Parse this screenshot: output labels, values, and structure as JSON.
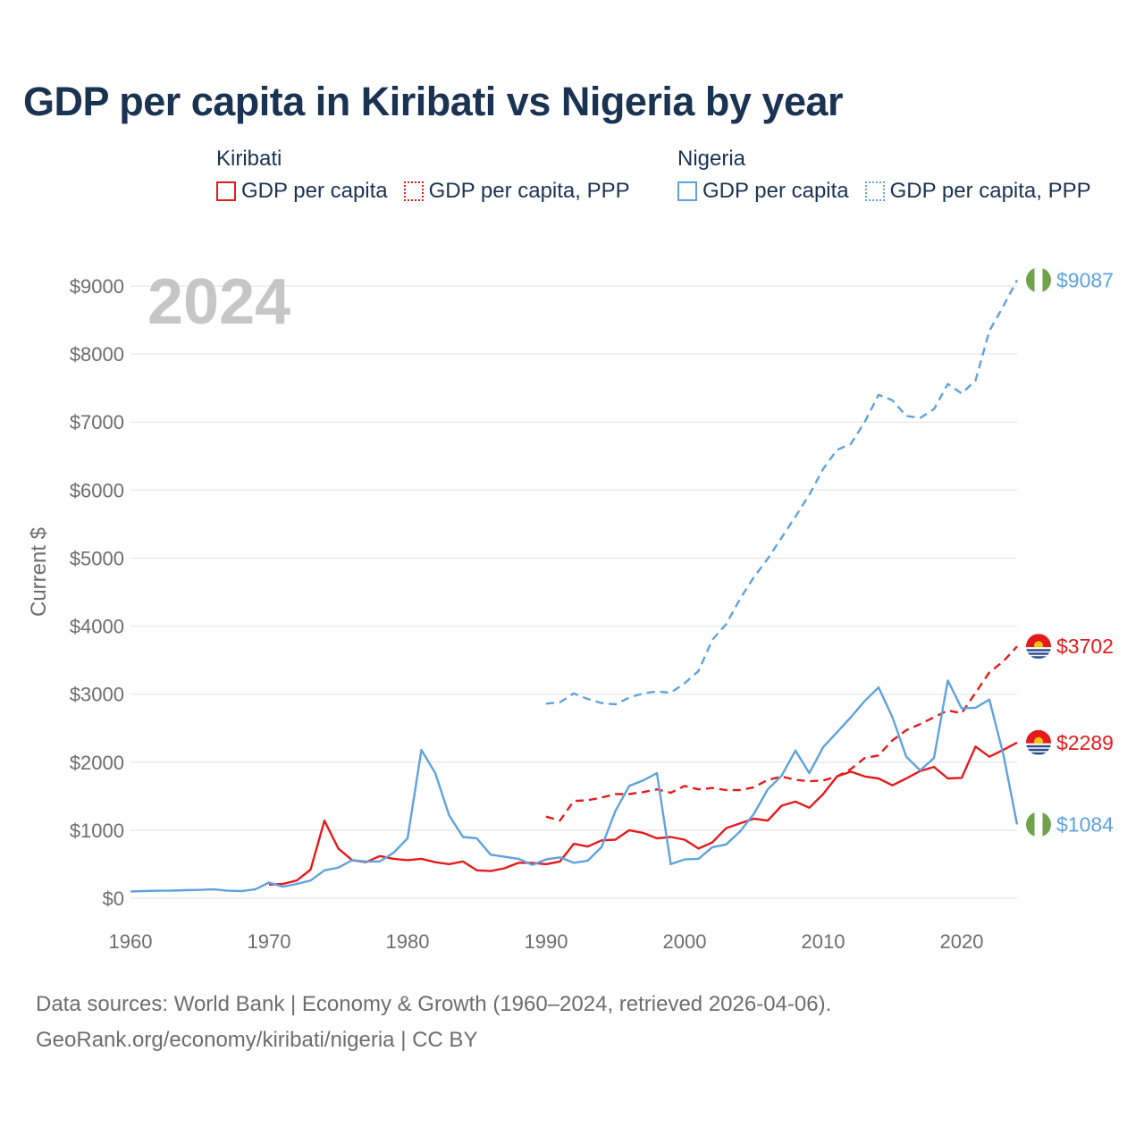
{
  "title": "GDP per capita in Kiribati vs Nigeria by year",
  "legend": {
    "groups": [
      {
        "name": "Kiribati",
        "items": [
          {
            "label": "GDP per capita",
            "color": "#e41a1c",
            "style": "solid"
          },
          {
            "label": "GDP per capita, PPP",
            "color": "#e41a1c",
            "style": "dotted"
          }
        ]
      },
      {
        "name": "Nigeria",
        "items": [
          {
            "label": "GDP per capita",
            "color": "#5fa2dd",
            "style": "solid"
          },
          {
            "label": "GDP per capita, PPP",
            "color": "#5fa2dd",
            "style": "dotted"
          }
        ]
      }
    ]
  },
  "year_watermark": "2024",
  "footer": {
    "line1": "Data sources: World Bank | Economy & Growth (1960–2024, retrieved 2026-04-06).",
    "line2": "GeoRank.org/economy/kiribati/nigeria | CC BY"
  },
  "chart_data": {
    "type": "line",
    "title": "GDP per capita in Kiribati vs Nigeria by year",
    "xlabel": "",
    "ylabel": "Current $",
    "xlim": [
      1960,
      2024
    ],
    "ylim": [
      0,
      9000
    ],
    "xticks": [
      1960,
      1970,
      1980,
      1990,
      2000,
      2010,
      2020
    ],
    "yticks": [
      0,
      1000,
      2000,
      3000,
      4000,
      5000,
      6000,
      7000,
      8000,
      9000
    ],
    "ytick_labels": [
      "$0",
      "$1000",
      "$2000",
      "$3000",
      "$4000",
      "$5000",
      "$6000",
      "$7000",
      "$8000",
      "$9000"
    ],
    "grid": true,
    "series": [
      {
        "name": "Kiribati GDP per capita",
        "color": "#e41a1c",
        "dash": "solid",
        "end_label": "$2289",
        "points": [
          [
            1970,
            200
          ],
          [
            1971,
            210
          ],
          [
            1972,
            260
          ],
          [
            1973,
            420
          ],
          [
            1974,
            1140
          ],
          [
            1975,
            730
          ],
          [
            1976,
            560
          ],
          [
            1977,
            530
          ],
          [
            1978,
            620
          ],
          [
            1979,
            580
          ],
          [
            1980,
            560
          ],
          [
            1981,
            580
          ],
          [
            1982,
            530
          ],
          [
            1983,
            500
          ],
          [
            1984,
            540
          ],
          [
            1985,
            410
          ],
          [
            1986,
            400
          ],
          [
            1987,
            440
          ],
          [
            1988,
            520
          ],
          [
            1989,
            520
          ],
          [
            1990,
            500
          ],
          [
            1991,
            540
          ],
          [
            1992,
            800
          ],
          [
            1993,
            760
          ],
          [
            1994,
            850
          ],
          [
            1995,
            860
          ],
          [
            1996,
            1000
          ],
          [
            1997,
            960
          ],
          [
            1998,
            880
          ],
          [
            1999,
            900
          ],
          [
            2000,
            860
          ],
          [
            2001,
            730
          ],
          [
            2002,
            820
          ],
          [
            2003,
            1030
          ],
          [
            2004,
            1100
          ],
          [
            2005,
            1170
          ],
          [
            2006,
            1140
          ],
          [
            2007,
            1360
          ],
          [
            2008,
            1420
          ],
          [
            2009,
            1330
          ],
          [
            2010,
            1530
          ],
          [
            2011,
            1790
          ],
          [
            2012,
            1860
          ],
          [
            2013,
            1790
          ],
          [
            2014,
            1760
          ],
          [
            2015,
            1660
          ],
          [
            2016,
            1760
          ],
          [
            2017,
            1870
          ],
          [
            2018,
            1930
          ],
          [
            2019,
            1760
          ],
          [
            2020,
            1770
          ],
          [
            2021,
            2230
          ],
          [
            2022,
            2080
          ],
          [
            2023,
            2180
          ],
          [
            2024,
            2289
          ]
        ]
      },
      {
        "name": "Kiribati GDP per capita, PPP",
        "color": "#e41a1c",
        "dash": "dashed",
        "end_label": "$3702",
        "points": [
          [
            1990,
            1200
          ],
          [
            1991,
            1140
          ],
          [
            1992,
            1430
          ],
          [
            1993,
            1440
          ],
          [
            1994,
            1480
          ],
          [
            1995,
            1530
          ],
          [
            1996,
            1530
          ],
          [
            1997,
            1560
          ],
          [
            1998,
            1600
          ],
          [
            1999,
            1550
          ],
          [
            2000,
            1650
          ],
          [
            2001,
            1600
          ],
          [
            2002,
            1620
          ],
          [
            2003,
            1590
          ],
          [
            2004,
            1590
          ],
          [
            2005,
            1630
          ],
          [
            2006,
            1740
          ],
          [
            2007,
            1790
          ],
          [
            2008,
            1740
          ],
          [
            2009,
            1720
          ],
          [
            2010,
            1730
          ],
          [
            2011,
            1790
          ],
          [
            2012,
            1900
          ],
          [
            2013,
            2060
          ],
          [
            2014,
            2100
          ],
          [
            2015,
            2320
          ],
          [
            2016,
            2470
          ],
          [
            2017,
            2560
          ],
          [
            2018,
            2660
          ],
          [
            2019,
            2760
          ],
          [
            2020,
            2720
          ],
          [
            2021,
            3020
          ],
          [
            2022,
            3320
          ],
          [
            2023,
            3480
          ],
          [
            2024,
            3702
          ]
        ]
      },
      {
        "name": "Nigeria GDP per capita",
        "color": "#5fa2dd",
        "dash": "solid",
        "end_label": "$1084",
        "points": [
          [
            1960,
            100
          ],
          [
            1961,
            105
          ],
          [
            1962,
            110
          ],
          [
            1963,
            112
          ],
          [
            1964,
            118
          ],
          [
            1965,
            122
          ],
          [
            1966,
            130
          ],
          [
            1967,
            110
          ],
          [
            1968,
            105
          ],
          [
            1969,
            130
          ],
          [
            1970,
            230
          ],
          [
            1971,
            170
          ],
          [
            1972,
            210
          ],
          [
            1973,
            260
          ],
          [
            1974,
            410
          ],
          [
            1975,
            450
          ],
          [
            1976,
            560
          ],
          [
            1977,
            540
          ],
          [
            1978,
            540
          ],
          [
            1979,
            670
          ],
          [
            1980,
            880
          ],
          [
            1981,
            2180
          ],
          [
            1982,
            1840
          ],
          [
            1983,
            1220
          ],
          [
            1984,
            900
          ],
          [
            1985,
            880
          ],
          [
            1986,
            640
          ],
          [
            1987,
            610
          ],
          [
            1988,
            580
          ],
          [
            1989,
            490
          ],
          [
            1990,
            570
          ],
          [
            1991,
            600
          ],
          [
            1992,
            520
          ],
          [
            1993,
            550
          ],
          [
            1994,
            750
          ],
          [
            1995,
            1280
          ],
          [
            1996,
            1650
          ],
          [
            1997,
            1730
          ],
          [
            1998,
            1840
          ],
          [
            1999,
            500
          ],
          [
            2000,
            570
          ],
          [
            2001,
            580
          ],
          [
            2002,
            750
          ],
          [
            2003,
            790
          ],
          [
            2004,
            980
          ],
          [
            2005,
            1240
          ],
          [
            2006,
            1600
          ],
          [
            2007,
            1800
          ],
          [
            2008,
            2170
          ],
          [
            2009,
            1840
          ],
          [
            2010,
            2220
          ],
          [
            2011,
            2440
          ],
          [
            2012,
            2660
          ],
          [
            2013,
            2900
          ],
          [
            2014,
            3100
          ],
          [
            2015,
            2660
          ],
          [
            2016,
            2080
          ],
          [
            2017,
            1880
          ],
          [
            2018,
            2060
          ],
          [
            2019,
            3200
          ],
          [
            2020,
            2790
          ],
          [
            2021,
            2800
          ],
          [
            2022,
            2920
          ],
          [
            2023,
            2120
          ],
          [
            2024,
            1084
          ]
        ]
      },
      {
        "name": "Nigeria GDP per capita, PPP",
        "color": "#5fa2dd",
        "dash": "dashed",
        "end_label": "$9087",
        "points": [
          [
            1990,
            2860
          ],
          [
            1991,
            2880
          ],
          [
            1992,
            3010
          ],
          [
            1993,
            2930
          ],
          [
            1994,
            2870
          ],
          [
            1995,
            2850
          ],
          [
            1996,
            2950
          ],
          [
            1997,
            3010
          ],
          [
            1998,
            3040
          ],
          [
            1999,
            3020
          ],
          [
            2000,
            3160
          ],
          [
            2001,
            3340
          ],
          [
            2002,
            3800
          ],
          [
            2003,
            4030
          ],
          [
            2004,
            4400
          ],
          [
            2005,
            4720
          ],
          [
            2006,
            4990
          ],
          [
            2007,
            5300
          ],
          [
            2008,
            5610
          ],
          [
            2009,
            5930
          ],
          [
            2010,
            6310
          ],
          [
            2011,
            6590
          ],
          [
            2012,
            6680
          ],
          [
            2013,
            7000
          ],
          [
            2014,
            7400
          ],
          [
            2015,
            7320
          ],
          [
            2016,
            7090
          ],
          [
            2017,
            7060
          ],
          [
            2018,
            7190
          ],
          [
            2019,
            7560
          ],
          [
            2020,
            7420
          ],
          [
            2021,
            7610
          ],
          [
            2022,
            8340
          ],
          [
            2023,
            8700
          ],
          [
            2024,
            9087
          ]
        ]
      }
    ]
  }
}
